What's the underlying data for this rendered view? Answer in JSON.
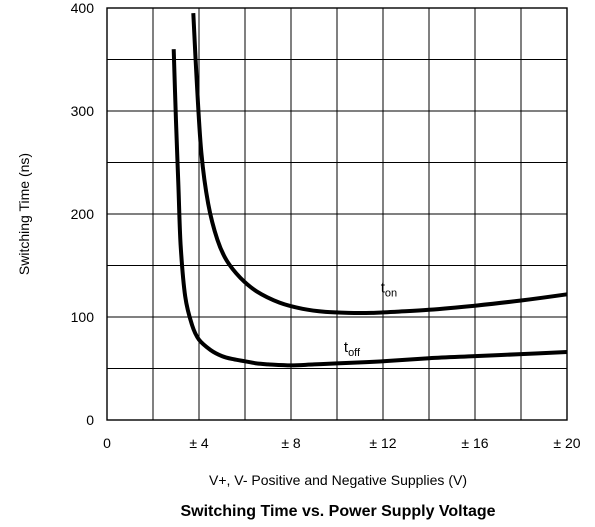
{
  "chart_data": {
    "type": "line",
    "title": "Switching Time vs. Power Supply Voltage",
    "xlabel": "V+, V- Positive and Negative Supplies (V)",
    "ylabel": "Switching Time (ns)",
    "xlim": [
      0,
      20
    ],
    "ylim": [
      0,
      400
    ],
    "grid": true,
    "x_ticks": [
      0,
      4,
      8,
      12,
      16,
      20
    ],
    "x_tick_labels": [
      "0",
      "± 4",
      "± 8",
      "± 12",
      "± 16",
      "± 20"
    ],
    "y_ticks": [
      0,
      100,
      200,
      300,
      400
    ],
    "y_tick_labels": [
      "0",
      "100",
      "200",
      "300",
      "400"
    ],
    "series": [
      {
        "name": "t_on",
        "label_main": "t",
        "label_sub": "on",
        "x": [
          3.75,
          3.9,
          4.1,
          4.4,
          4.8,
          5.2,
          5.8,
          6.5,
          7.5,
          8.5,
          9.5,
          10.5,
          11.5,
          12.5,
          14,
          16,
          18,
          20
        ],
        "y": [
          395,
          330,
          260,
          210,
          175,
          155,
          138,
          125,
          114,
          108,
          105,
          104,
          104,
          105,
          107,
          111,
          116,
          122
        ]
      },
      {
        "name": "t_off",
        "label_main": "t",
        "label_sub": "off",
        "x": [
          2.9,
          3.0,
          3.1,
          3.2,
          3.4,
          3.7,
          4.0,
          4.5,
          5.0,
          5.5,
          6.0,
          6.5,
          7.0,
          8.0,
          9.0,
          10.0,
          12.0,
          14.0,
          16.0,
          18.0,
          20.0
        ],
        "y": [
          360,
          290,
          230,
          170,
          120,
          92,
          78,
          68,
          62,
          59,
          57,
          55,
          54,
          53,
          54,
          55,
          57,
          60,
          62,
          64,
          66
        ]
      }
    ]
  }
}
